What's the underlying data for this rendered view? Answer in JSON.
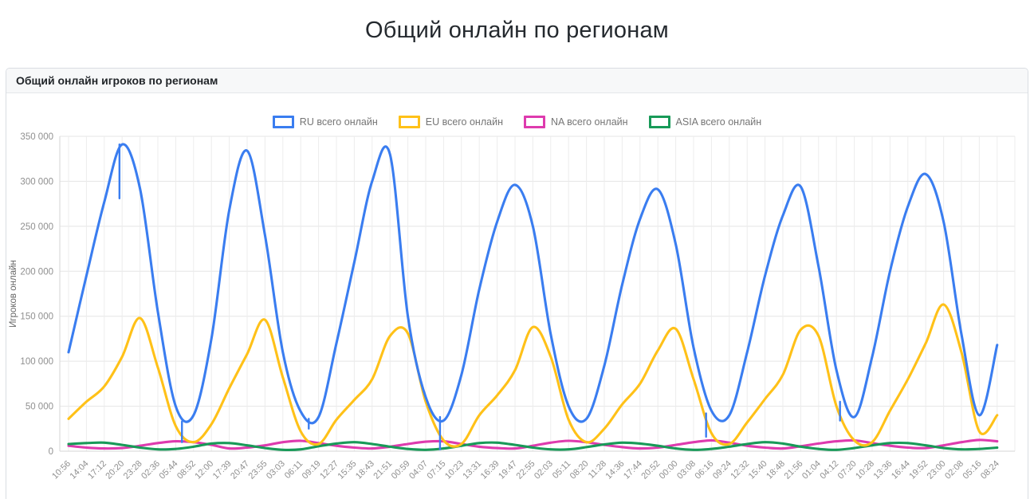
{
  "page": {
    "title": "Общий онлайн по регионам"
  },
  "panel": {
    "header": "Общий онлайн игроков по регионам"
  },
  "chart_data": {
    "type": "line",
    "title": "Общий онлайн игроков по регионам",
    "xlabel": "",
    "ylabel": "Игроков онлайн",
    "ylim": [
      0,
      350000
    ],
    "ytick_step": 50000,
    "ytick_labels": [
      "0",
      "50 000",
      "100 000",
      "150 000",
      "200 000",
      "250 000",
      "300 000",
      "350 000"
    ],
    "grid": true,
    "legend_position": "top",
    "grid_color": "#e5e5e5",
    "tick_label_color": "#8f8f8f",
    "axis_title_color": "#666666",
    "categories": [
      "10:56",
      "14:04",
      "17:12",
      "20:20",
      "23:28",
      "02:36",
      "05:44",
      "08:52",
      "12:00",
      "17:39",
      "20:47",
      "23:55",
      "03:03",
      "06:11",
      "09:19",
      "12:27",
      "15:35",
      "18:43",
      "21:51",
      "00:59",
      "04:07",
      "07:15",
      "10:23",
      "13:31",
      "16:39",
      "19:47",
      "22:55",
      "02:03",
      "05:11",
      "08:20",
      "11:28",
      "14:36",
      "17:44",
      "20:52",
      "00:00",
      "03:08",
      "06:16",
      "09:24",
      "12:32",
      "15:40",
      "18:48",
      "21:56",
      "01:04",
      "04:12",
      "07:20",
      "10:28",
      "13:36",
      "16:44",
      "19:52",
      "23:00",
      "02:08",
      "05:16",
      "08:24"
    ],
    "series": [
      {
        "name": "RU всего онлайн",
        "slug": "ru",
        "color": "#3a7df0",
        "values": [
          110000,
          195000,
          277000,
          341000,
          292000,
          155000,
          50000,
          40000,
          125000,
          268000,
          334000,
          240000,
          110000,
          44000,
          38000,
          120000,
          210000,
          300000,
          330000,
          150000,
          60000,
          34000,
          85000,
          180000,
          255000,
          296000,
          250000,
          130000,
          50000,
          36000,
          95000,
          185000,
          258000,
          291000,
          230000,
          115000,
          45000,
          40000,
          110000,
          195000,
          262000,
          294000,
          205000,
          90000,
          38000,
          105000,
          200000,
          272000,
          308000,
          255000,
          130000,
          40000,
          118000
        ]
      },
      {
        "name": "EU всего онлайн",
        "slug": "eu",
        "color": "#ffc118",
        "values": [
          36000,
          55000,
          72000,
          105000,
          148000,
          93000,
          28000,
          10000,
          30000,
          70000,
          108000,
          146000,
          82000,
          22000,
          8000,
          35000,
          57000,
          80000,
          128000,
          131000,
          55000,
          12000,
          8000,
          40000,
          62000,
          90000,
          138000,
          105000,
          35000,
          10000,
          25000,
          52000,
          75000,
          112000,
          136000,
          80000,
          20000,
          8000,
          32000,
          58000,
          85000,
          135000,
          128000,
          50000,
          12000,
          10000,
          45000,
          80000,
          120000,
          163000,
          110000,
          22000,
          40000
        ]
      },
      {
        "name": "NA всего онлайн",
        "slug": "na",
        "color": "#de3bae",
        "values": [
          6000,
          4000,
          3000,
          3500,
          6000,
          9000,
          11000,
          10000,
          7000,
          3000,
          4000,
          6500,
          10000,
          11500,
          9000,
          6000,
          4000,
          3000,
          5000,
          8000,
          10500,
          11000,
          8000,
          5000,
          3500,
          3000,
          6000,
          9500,
          11500,
          10000,
          7000,
          4500,
          3000,
          4000,
          7000,
          10000,
          12000,
          9500,
          6000,
          4000,
          3000,
          5500,
          8500,
          11000,
          12000,
          9000,
          6000,
          4000,
          3500,
          6500,
          10000,
          12500,
          11000
        ]
      },
      {
        "name": "ASIA всего онлайн",
        "slug": "asia",
        "color": "#189a58",
        "values": [
          8000,
          9000,
          9500,
          7000,
          4000,
          2000,
          2500,
          5000,
          8500,
          9000,
          6500,
          3500,
          1500,
          2000,
          5500,
          8500,
          10000,
          8000,
          5000,
          2500,
          1500,
          3000,
          6000,
          9000,
          9500,
          7000,
          4000,
          2000,
          2000,
          4500,
          7500,
          9500,
          8500,
          6000,
          3000,
          1500,
          2500,
          5000,
          8000,
          10000,
          8500,
          5000,
          2500,
          1500,
          3500,
          6500,
          9000,
          9000,
          6500,
          3500,
          2000,
          2500,
          4000
        ]
      }
    ],
    "glitch_spikes": [
      {
        "series": "RU всего онлайн",
        "index": 2.85,
        "from": 341000,
        "to": 281000
      },
      {
        "series": "RU всего онлайн",
        "index": 6.35,
        "from": 33000,
        "to": 10000
      },
      {
        "series": "RU всего онлайн",
        "index": 13.45,
        "from": 36000,
        "to": 25000
      },
      {
        "series": "RU всего онлайн",
        "index": 20.8,
        "from": 38000,
        "to": 2000
      },
      {
        "series": "RU всего онлайн",
        "index": 35.7,
        "from": 42000,
        "to": 16000
      },
      {
        "series": "RU всего онлайн",
        "index": 43.2,
        "from": 55000,
        "to": 34000
      }
    ]
  }
}
